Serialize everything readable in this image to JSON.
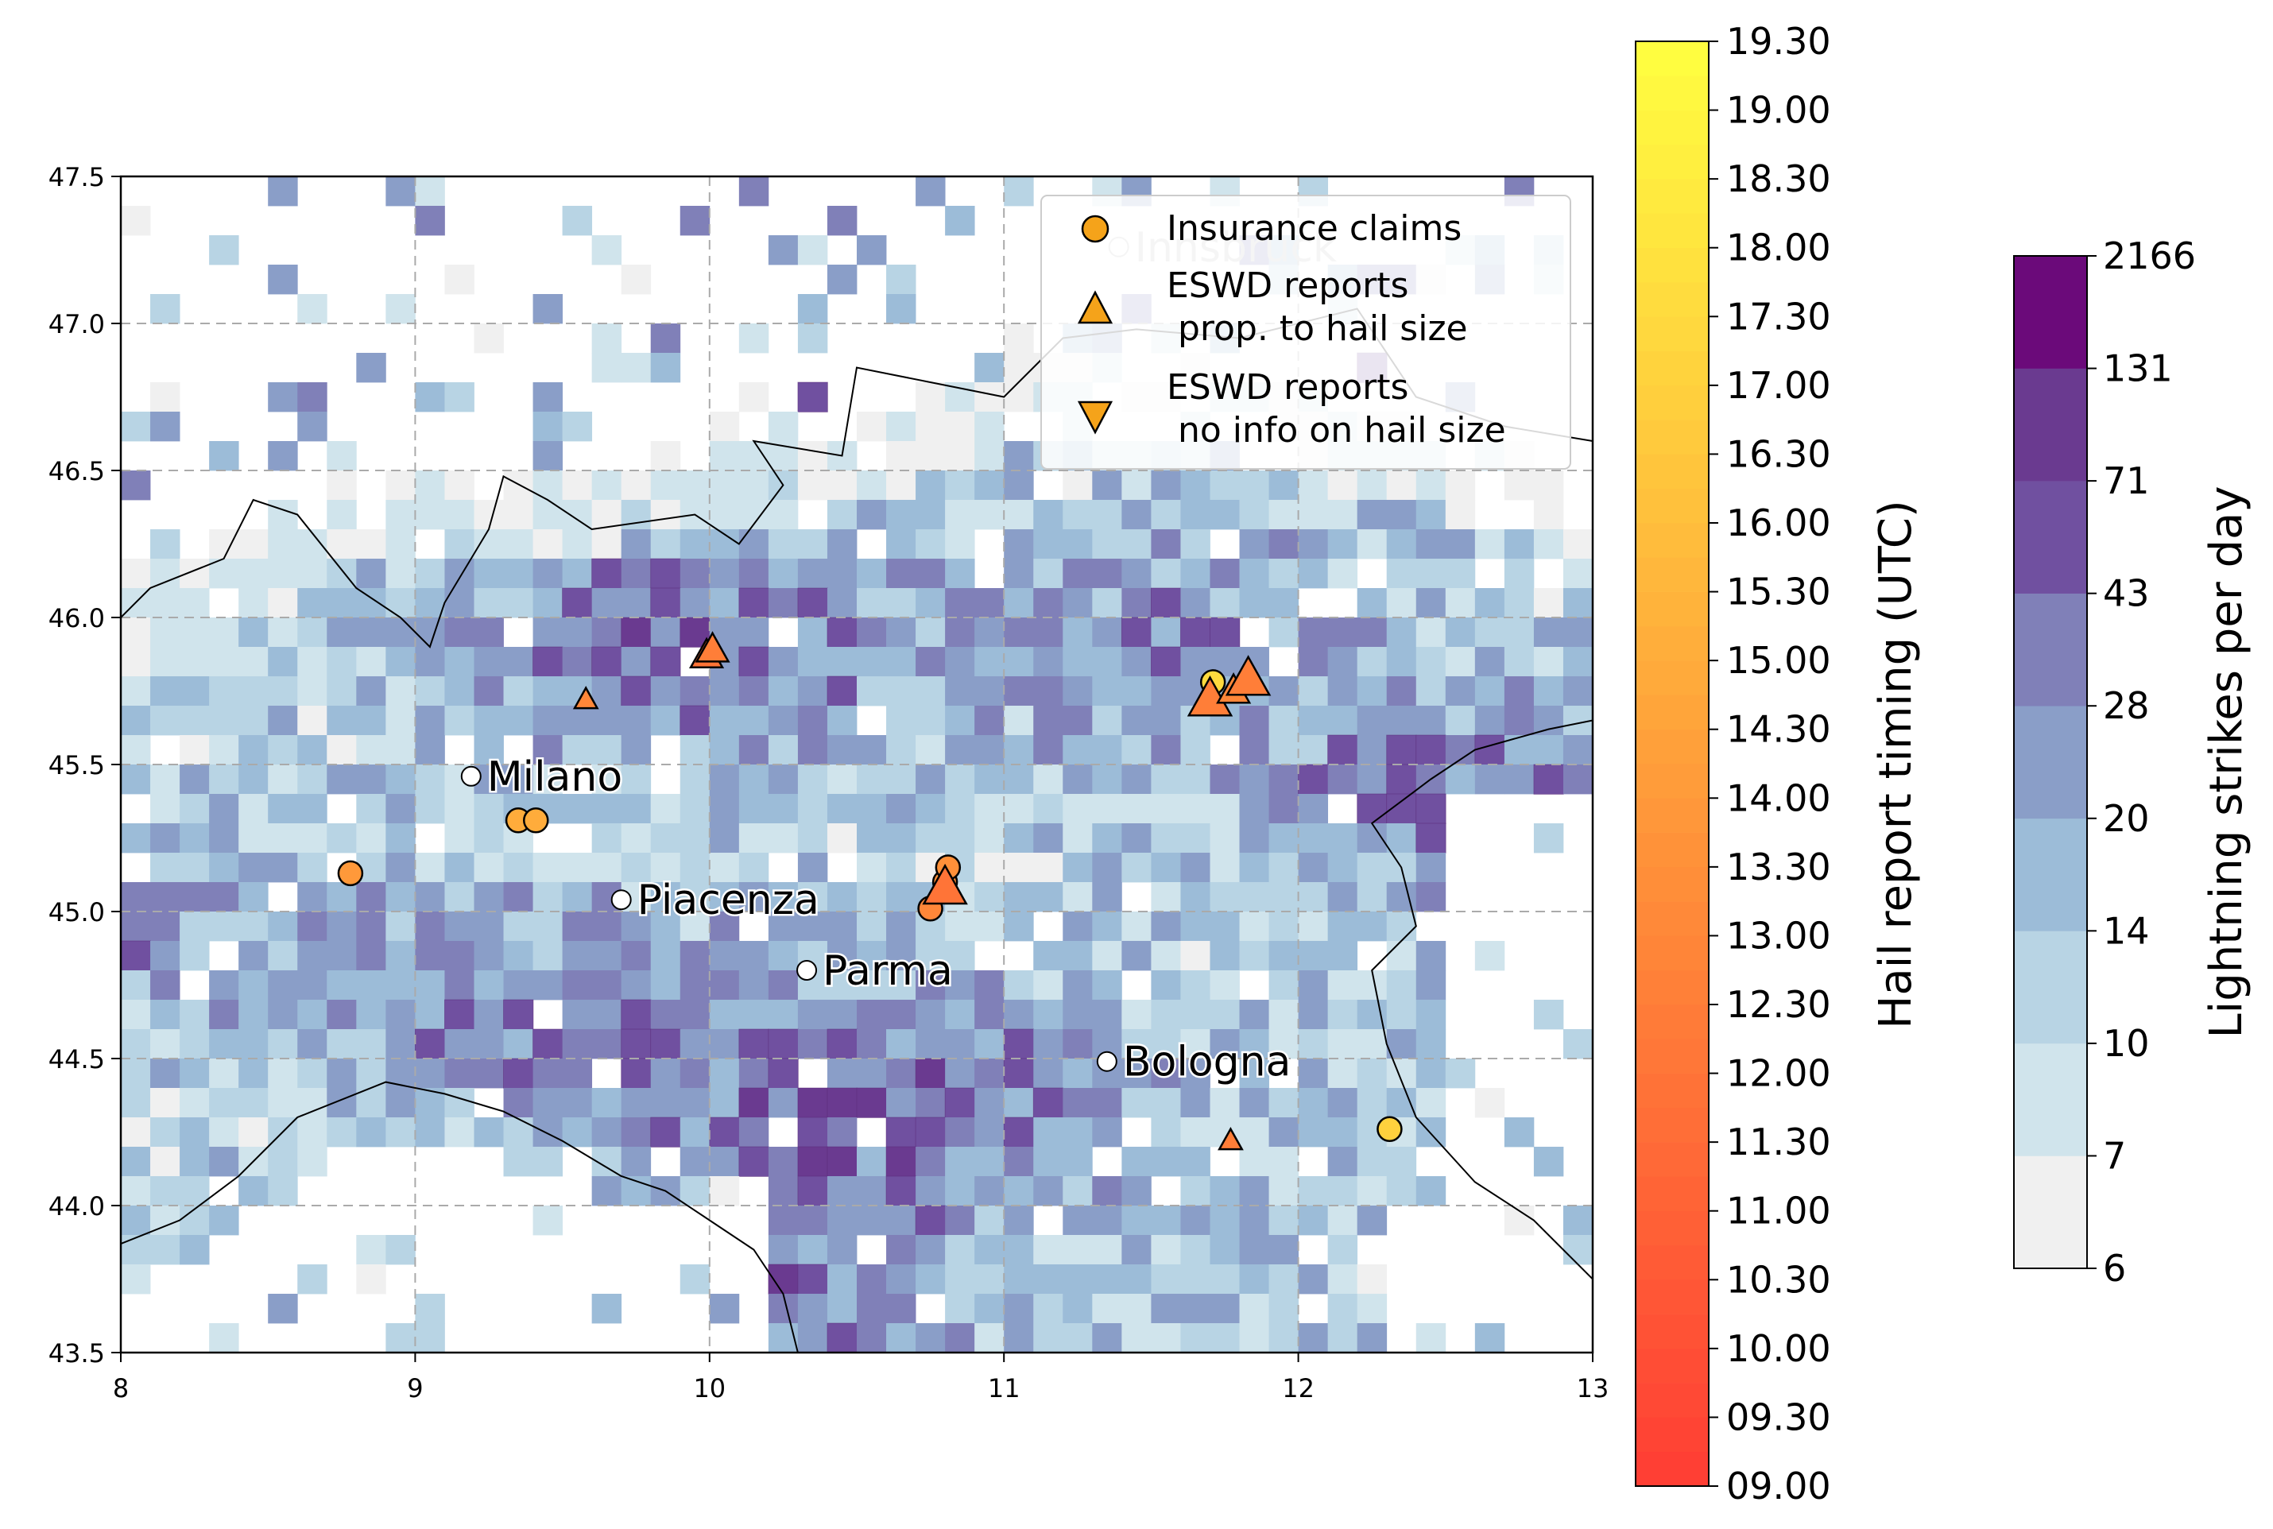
{
  "map": {
    "extent": {
      "lon": [
        8,
        13
      ],
      "lat": [
        43.5,
        47.5
      ]
    },
    "x_ticks": [
      "8",
      "9",
      "10",
      "11",
      "12",
      "13"
    ],
    "y_ticks": [
      "43.5",
      "44.0",
      "44.5",
      "45.0",
      "45.5",
      "46.0",
      "46.5",
      "47.0",
      "47.5"
    ],
    "grid": "dashed",
    "grid_resolution_deg": 0.1,
    "cities": [
      {
        "name": "Milano",
        "lon": 9.19,
        "lat": 45.46
      },
      {
        "name": "Piacenza",
        "lon": 9.7,
        "lat": 45.04
      },
      {
        "name": "Parma",
        "lon": 10.33,
        "lat": 44.8
      },
      {
        "name": "Bologna",
        "lon": 11.35,
        "lat": 44.49
      },
      {
        "name": "Innsbruck",
        "lon": 11.39,
        "lat": 47.26
      }
    ],
    "insurance_claims": [
      {
        "lon": 8.78,
        "lat": 45.13,
        "time": "14.00"
      },
      {
        "lon": 9.35,
        "lat": 45.31,
        "time": "15.00"
      },
      {
        "lon": 9.41,
        "lat": 45.31,
        "time": "15.00"
      },
      {
        "lon": 10.75,
        "lat": 45.01,
        "time": "13.00"
      },
      {
        "lon": 10.8,
        "lat": 45.1,
        "time": "13.30"
      },
      {
        "lon": 10.81,
        "lat": 45.15,
        "time": "13.30"
      },
      {
        "lon": 11.71,
        "lat": 45.78,
        "time": "17.30"
      },
      {
        "lon": 12.31,
        "lat": 44.26,
        "time": "17.00"
      }
    ],
    "eswd_reports_size": [
      {
        "lon": 9.58,
        "lat": 45.72,
        "time": "13.00",
        "size": "small"
      },
      {
        "lon": 9.99,
        "lat": 45.87,
        "time": "12.00",
        "size": "medium"
      },
      {
        "lon": 10.01,
        "lat": 45.89,
        "time": "12.30",
        "size": "medium"
      },
      {
        "lon": 10.8,
        "lat": 45.08,
        "time": "12.00",
        "size": "large"
      },
      {
        "lon": 11.7,
        "lat": 45.72,
        "time": "12.30",
        "size": "large"
      },
      {
        "lon": 11.78,
        "lat": 45.75,
        "time": "13.00",
        "size": "medium"
      },
      {
        "lon": 11.83,
        "lat": 45.79,
        "time": "12.30",
        "size": "large"
      },
      {
        "lon": 11.77,
        "lat": 44.22,
        "time": "12.30",
        "size": "small"
      }
    ],
    "legend": {
      "items": [
        {
          "label_lines": [
            "Insurance claims"
          ]
        },
        {
          "label_lines": [
            "ESWD reports",
            " prop. to hail size"
          ]
        },
        {
          "label_lines": [
            "ESWD reports",
            " no info on hail size"
          ]
        }
      ],
      "placement": "top-right"
    },
    "lightning": {
      "seed": 20240601,
      "hotspots": [
        {
          "lon": 9.9,
          "lat": 45.9,
          "strength": 2.4
        },
        {
          "lon": 10.7,
          "lat": 44.35,
          "strength": 2.6
        },
        {
          "lon": 12.6,
          "lat": 45.35,
          "strength": 2.2
        },
        {
          "lon": 9.5,
          "lat": 44.62,
          "strength": 1.8
        },
        {
          "lon": 11.6,
          "lat": 45.9,
          "strength": 1.6
        },
        {
          "lon": 10.2,
          "lat": 43.7,
          "strength": 1.8
        },
        {
          "lon": 8.2,
          "lat": 44.9,
          "strength": 1.4
        }
      ]
    },
    "coastline_color": "#000000"
  },
  "colorbar_time": {
    "label": "Hail report timing (UTC)",
    "ticks": [
      "09.00",
      "09.30",
      "10.00",
      "10.30",
      "11.00",
      "11.30",
      "12.00",
      "12.30",
      "13.00",
      "13.30",
      "14.00",
      "14.30",
      "15.00",
      "15.30",
      "16.00",
      "16.30",
      "17.00",
      "17.30",
      "18.00",
      "18.30",
      "19.00",
      "19.30"
    ],
    "colormap": "autumn (red to yellow)",
    "color_low": "#ff3d34",
    "color_high": "#ffff40"
  },
  "colorbar_lightning": {
    "label": "Lightning strikes per day",
    "ticks": [
      "6",
      "7",
      "10",
      "14",
      "20",
      "28",
      "43",
      "71",
      "131",
      "2166"
    ],
    "colors": [
      "#f0f0f0",
      "#d0e4ec",
      "#b8d4e4",
      "#9cbcd8",
      "#8a9ec8",
      "#8080b8",
      "#7050a0",
      "#6a3a90",
      "#6b0a7a"
    ]
  }
}
